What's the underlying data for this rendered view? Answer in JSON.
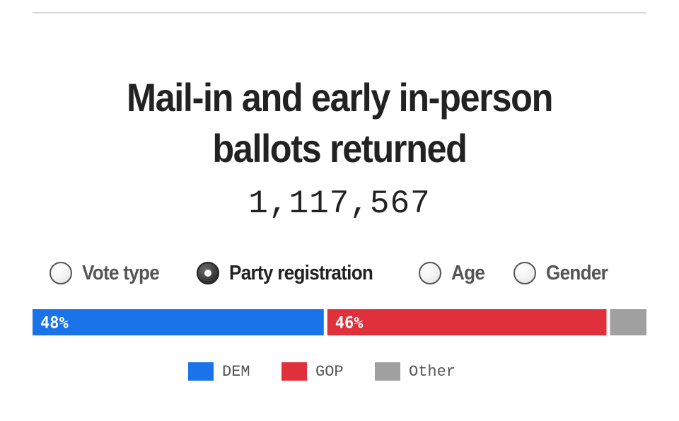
{
  "title": "Mail-in and early in-person ballots returned",
  "total": "1,117,567",
  "options": [
    {
      "label": "Vote type",
      "checked": false
    },
    {
      "label": "Party registration",
      "checked": true
    },
    {
      "label": "Age",
      "checked": false
    },
    {
      "label": "Gender",
      "checked": false
    }
  ],
  "chart_data": {
    "type": "bar",
    "orientation": "horizontal-stacked-100",
    "categories": [
      "DEM",
      "GOP",
      "Other"
    ],
    "values": [
      48,
      46,
      6
    ],
    "labels": [
      "48%",
      "46%",
      ""
    ],
    "colors": [
      "#1a73e8",
      "#e0303b",
      "#a0a0a0"
    ],
    "legend_position": "bottom"
  },
  "legend": [
    {
      "label": "DEM",
      "color": "#1a73e8"
    },
    {
      "label": "GOP",
      "color": "#e0303b"
    },
    {
      "label": "Other",
      "color": "#a0a0a0"
    }
  ]
}
